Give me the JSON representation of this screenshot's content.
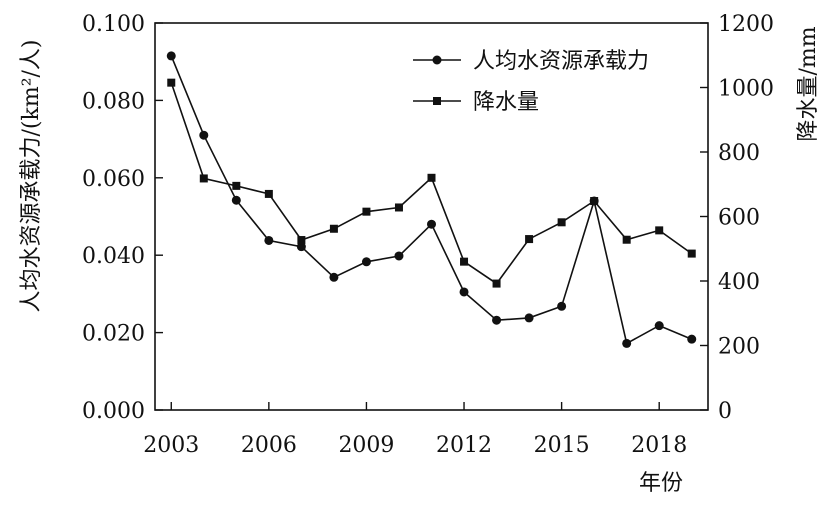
{
  "chart_data": {
    "type": "line",
    "xlabel": "年份",
    "ylabel_left": "人均水资源承载力/(km²/人)",
    "ylabel_right": "降水量/mm",
    "xlim": [
      2002.5,
      2019.5
    ],
    "ylim_left": [
      0,
      0.1
    ],
    "ylim_right": [
      0,
      1200
    ],
    "x_ticks": [
      2003,
      2006,
      2009,
      2012,
      2015,
      2018
    ],
    "x_tick_labels": [
      "2003",
      "2006",
      "2009",
      "2012",
      "2015",
      "2018"
    ],
    "left_ticks": [
      0,
      0.02,
      0.04,
      0.06,
      0.08,
      0.1
    ],
    "left_tick_labels": [
      "0.000",
      "0.020",
      "0.040",
      "0.060",
      "0.080",
      "0.100"
    ],
    "right_ticks": [
      0,
      200,
      400,
      600,
      800,
      1000,
      1200
    ],
    "right_tick_labels": [
      "0",
      "200",
      "400",
      "600",
      "800",
      "1000",
      "1200"
    ],
    "legend_position": "top-right",
    "grid": false,
    "x": [
      2003,
      2004,
      2005,
      2006,
      2007,
      2008,
      2009,
      2010,
      2011,
      2012,
      2013,
      2014,
      2015,
      2016,
      2017,
      2018,
      2019
    ],
    "series": [
      {
        "name": "人均水资源承载力",
        "axis": "left",
        "marker": "circle",
        "values": [
          0.0915,
          0.071,
          0.0542,
          0.0438,
          0.0422,
          0.0343,
          0.0383,
          0.0398,
          0.048,
          0.0305,
          0.0232,
          0.0238,
          0.0268,
          0.054,
          0.0172,
          0.0218,
          0.0183
        ]
      },
      {
        "name": "降水量",
        "axis": "right",
        "marker": "square",
        "values": [
          1015,
          718,
          695,
          670,
          527,
          562,
          615,
          628,
          720,
          460,
          392,
          530,
          582,
          648,
          528,
          557,
          485
        ]
      }
    ]
  }
}
